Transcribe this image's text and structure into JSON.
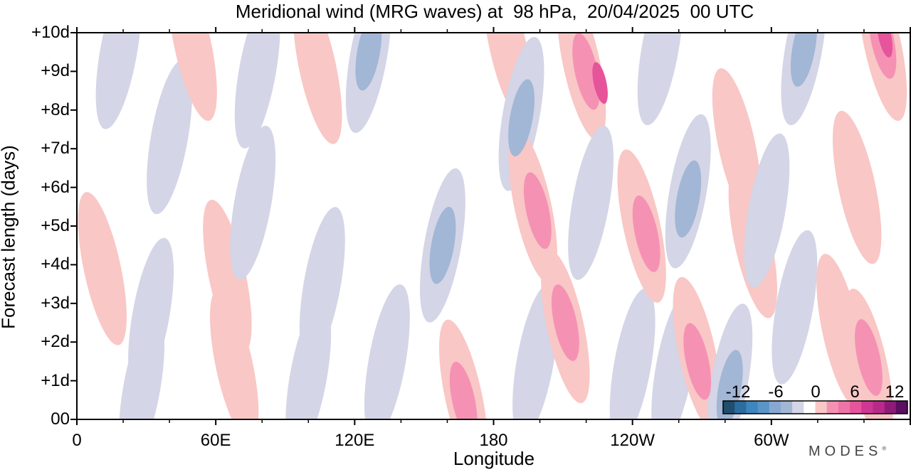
{
  "colors": {
    "neg_light": "#d4d5e6",
    "neg_med": "#a2b6d6",
    "neg_strong": "#5a95c8",
    "neg_deep": "#2a6d9e",
    "pos_light": "#f9c7c5",
    "pos_med": "#f592b4",
    "pos_strong": "#e6549b",
    "pos_deep": "#b82a8a"
  },
  "chart_data": {
    "type": "heatmap",
    "title": "Meridional wind (MRG waves) at  98 hPa,  20/04/2025  00 UTC",
    "xlabel": "Longitude",
    "ylabel": "Forecast length (days)",
    "x_ticks": [
      "0",
      "60E",
      "120E",
      "180",
      "120W",
      "60W"
    ],
    "y_ticks": [
      "00",
      "+1d",
      "+2d",
      "+3d",
      "+4d",
      "+5d",
      "+6d",
      "+7d",
      "+8d",
      "+9d",
      "+10d"
    ],
    "xlim_deg_east": [
      0,
      360
    ],
    "ylim_days": [
      0,
      10
    ],
    "colorbar": {
      "tick_labels": [
        "-12",
        "-6",
        "0",
        "6",
        "12"
      ],
      "levels": [
        -14,
        -12,
        -10,
        -8,
        -6,
        -4,
        -2,
        2,
        4,
        6,
        8,
        10,
        12,
        14
      ],
      "colors": [
        "#1f4e6e",
        "#2a6d9e",
        "#3e86bd",
        "#5a95c8",
        "#88a8d2",
        "#a2b6d6",
        "#d4d5e6",
        "#ffffff",
        "#f9c7c5",
        "#f592b4",
        "#ee74a8",
        "#e6549b",
        "#cc3893",
        "#b82a8a",
        "#8e1b78",
        "#5a0f60"
      ]
    },
    "features": [
      {
        "lon": 18,
        "day": 9.5,
        "value": -3
      },
      {
        "lon": 40,
        "day": 7.3,
        "value": -3
      },
      {
        "lon": 32,
        "day": 2.7,
        "value": -3
      },
      {
        "lon": 28,
        "day": 0.8,
        "value": -3
      },
      {
        "lon": 50,
        "day": 9.7,
        "value": 3
      },
      {
        "lon": 11,
        "day": 3.9,
        "value": 3
      },
      {
        "lon": 65,
        "day": 3.7,
        "value": 3
      },
      {
        "lon": 68,
        "day": 1.4,
        "value": 3
      },
      {
        "lon": 76,
        "day": 5.6,
        "value": -3
      },
      {
        "lon": 78,
        "day": 9.0,
        "value": -3
      },
      {
        "lon": 104,
        "day": 9.1,
        "value": 3
      },
      {
        "lon": 106,
        "day": 3.5,
        "value": -3
      },
      {
        "lon": 100,
        "day": 1.1,
        "value": -3
      },
      {
        "lon": 126,
        "day": 9.4,
        "value": -3
      },
      {
        "lon": 126,
        "day": 9.5,
        "value": -6
      },
      {
        "lon": 134,
        "day": 1.5,
        "value": -3
      },
      {
        "lon": 158,
        "day": 4.5,
        "value": -3
      },
      {
        "lon": 158,
        "day": 4.5,
        "value": -6
      },
      {
        "lon": 167,
        "day": 0.6,
        "value": 3
      },
      {
        "lon": 167,
        "day": 0.5,
        "value": 6
      },
      {
        "lon": 186,
        "day": 9.7,
        "value": 3
      },
      {
        "lon": 192,
        "day": 7.9,
        "value": -3
      },
      {
        "lon": 192,
        "day": 7.8,
        "value": -6
      },
      {
        "lon": 197,
        "day": 5.5,
        "value": 3
      },
      {
        "lon": 199,
        "day": 5.4,
        "value": 6
      },
      {
        "lon": 198,
        "day": 1.5,
        "value": -3
      },
      {
        "lon": 211,
        "day": 2.4,
        "value": 3
      },
      {
        "lon": 211,
        "day": 2.5,
        "value": 6
      },
      {
        "lon": 218,
        "day": 9.2,
        "value": 3
      },
      {
        "lon": 220,
        "day": 9.0,
        "value": 6
      },
      {
        "lon": 226,
        "day": 8.7,
        "value": 9
      },
      {
        "lon": 222,
        "day": 5.6,
        "value": -3
      },
      {
        "lon": 240,
        "day": 1.4,
        "value": -3
      },
      {
        "lon": 244,
        "day": 5.0,
        "value": 3
      },
      {
        "lon": 246,
        "day": 4.8,
        "value": 6
      },
      {
        "lon": 252,
        "day": 9.6,
        "value": -3
      },
      {
        "lon": 258,
        "day": 1.3,
        "value": -3
      },
      {
        "lon": 264,
        "day": 5.9,
        "value": -3
      },
      {
        "lon": 264,
        "day": 5.7,
        "value": -6
      },
      {
        "lon": 268,
        "day": 1.7,
        "value": 3
      },
      {
        "lon": 268,
        "day": 1.5,
        "value": 6
      },
      {
        "lon": 282,
        "day": 1.0,
        "value": -3
      },
      {
        "lon": 282,
        "day": 0.8,
        "value": -6
      },
      {
        "lon": 285,
        "day": 7.1,
        "value": 3
      },
      {
        "lon": 292,
        "day": 4.6,
        "value": 3
      },
      {
        "lon": 298,
        "day": 5.4,
        "value": -3
      },
      {
        "lon": 310,
        "day": 2.9,
        "value": -3
      },
      {
        "lon": 314,
        "day": 9.6,
        "value": -3
      },
      {
        "lon": 314,
        "day": 9.6,
        "value": -6
      },
      {
        "lon": 330,
        "day": 2.3,
        "value": 3
      },
      {
        "lon": 337,
        "day": 6.0,
        "value": 3
      },
      {
        "lon": 342,
        "day": 1.4,
        "value": 3
      },
      {
        "lon": 342,
        "day": 1.6,
        "value": 6
      },
      {
        "lon": 348,
        "day": 9.7,
        "value": 3
      },
      {
        "lon": 348,
        "day": 9.8,
        "value": 6
      },
      {
        "lon": 349,
        "day": 9.9,
        "value": 9
      }
    ]
  },
  "footer": {
    "brand": "MODES",
    "brand_mark": "®"
  }
}
